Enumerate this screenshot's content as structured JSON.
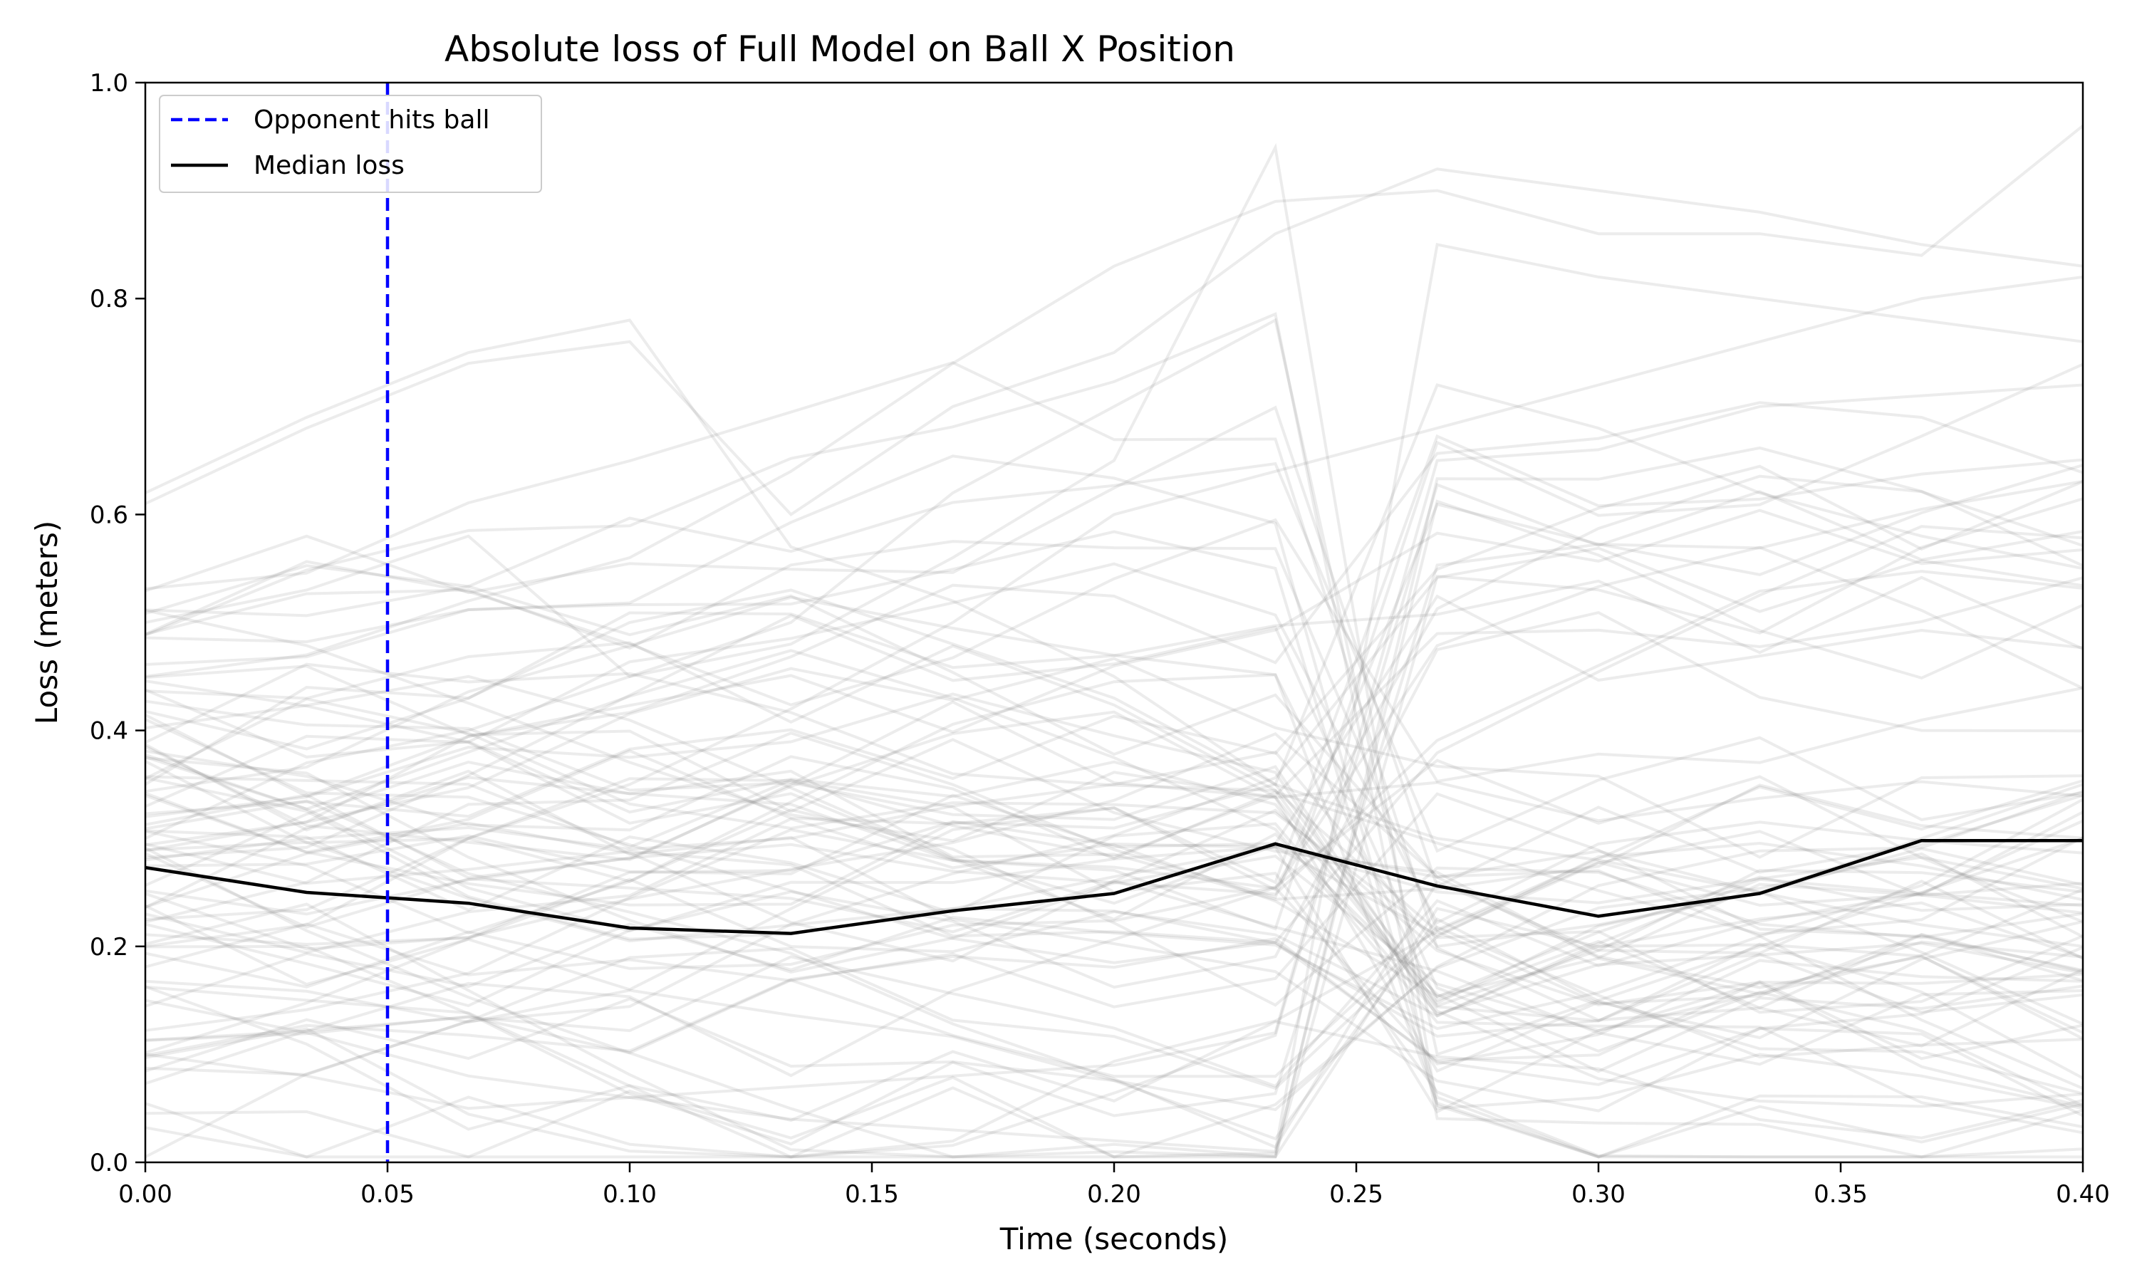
{
  "chart_data": {
    "type": "line",
    "title": "Absolute loss of Full Model on Ball X Position",
    "xlabel": "Time (seconds)",
    "ylabel": "Loss (meters)",
    "xlim": [
      0.0,
      0.4
    ],
    "ylim": [
      0.0,
      1.0
    ],
    "x_ticks": [
      "0.00",
      "0.05",
      "0.10",
      "0.15",
      "0.20",
      "0.25",
      "0.30",
      "0.35",
      "0.40"
    ],
    "y_ticks": [
      "0.0",
      "0.2",
      "0.4",
      "0.6",
      "0.8",
      "1.0"
    ],
    "grid": false,
    "legend_position": "top-left",
    "x": [
      0.0,
      0.0333,
      0.0667,
      0.1,
      0.1333,
      0.1667,
      0.2,
      0.2333,
      0.2667,
      0.3,
      0.3333,
      0.3667,
      0.4
    ],
    "series": [
      {
        "name": "Median loss",
        "color": "#000000",
        "style": "solid",
        "values": [
          0.273,
          0.25,
          0.24,
          0.217,
          0.212,
          0.233,
          0.249,
          0.295,
          0.256,
          0.228,
          0.249,
          0.298,
          0.298
        ]
      }
    ],
    "vertical_lines": [
      {
        "name": "Opponent hits ball",
        "x": 0.05,
        "color": "#0000ff",
        "style": "dashed"
      }
    ],
    "background_trajectories": {
      "color": "#808080",
      "count": 90,
      "description_values": [
        [
          0.62,
          0.69,
          0.75,
          0.78,
          0.57,
          0.52,
          0.45,
          0.35,
          0.3,
          0.28,
          0.25,
          0.22,
          0.2
        ],
        [
          0.61,
          0.68,
          0.74,
          0.76,
          0.6,
          0.7,
          0.75,
          0.86,
          0.92,
          0.9,
          0.88,
          0.85,
          0.83
        ],
        [
          0.5,
          0.53,
          0.58,
          0.45,
          0.48,
          0.56,
          0.65,
          0.94,
          0.05,
          0.06,
          0.1,
          0.08,
          0.05
        ],
        [
          0.45,
          0.47,
          0.52,
          0.56,
          0.64,
          0.74,
          0.83,
          0.89,
          0.9,
          0.86,
          0.86,
          0.84,
          0.96
        ],
        [
          0.35,
          0.44,
          0.43,
          0.5,
          0.53,
          0.48,
          0.43,
          0.35,
          0.72,
          0.68,
          0.62,
          0.58,
          0.55
        ],
        [
          0.3,
          0.37,
          0.4,
          0.45,
          0.5,
          0.62,
          0.7,
          0.78,
          0.1,
          0.15,
          0.2,
          0.25,
          0.3
        ],
        [
          0.2,
          0.22,
          0.3,
          0.35,
          0.42,
          0.5,
          0.6,
          0.64,
          0.68,
          0.72,
          0.76,
          0.8,
          0.82
        ],
        [
          0.15,
          0.12,
          0.08,
          0.06,
          0.04,
          0.03,
          0.02,
          0.01,
          0.85,
          0.82,
          0.8,
          0.78,
          0.76
        ],
        [
          0.28,
          0.3,
          0.31,
          0.29,
          0.3,
          0.33,
          0.35,
          0.38,
          0.2,
          0.22,
          0.25,
          0.3,
          0.35
        ],
        [
          0.1,
          0.08,
          0.05,
          0.06,
          0.07,
          0.08,
          0.09,
          0.12,
          0.65,
          0.66,
          0.7,
          0.71,
          0.72
        ]
      ]
    }
  }
}
